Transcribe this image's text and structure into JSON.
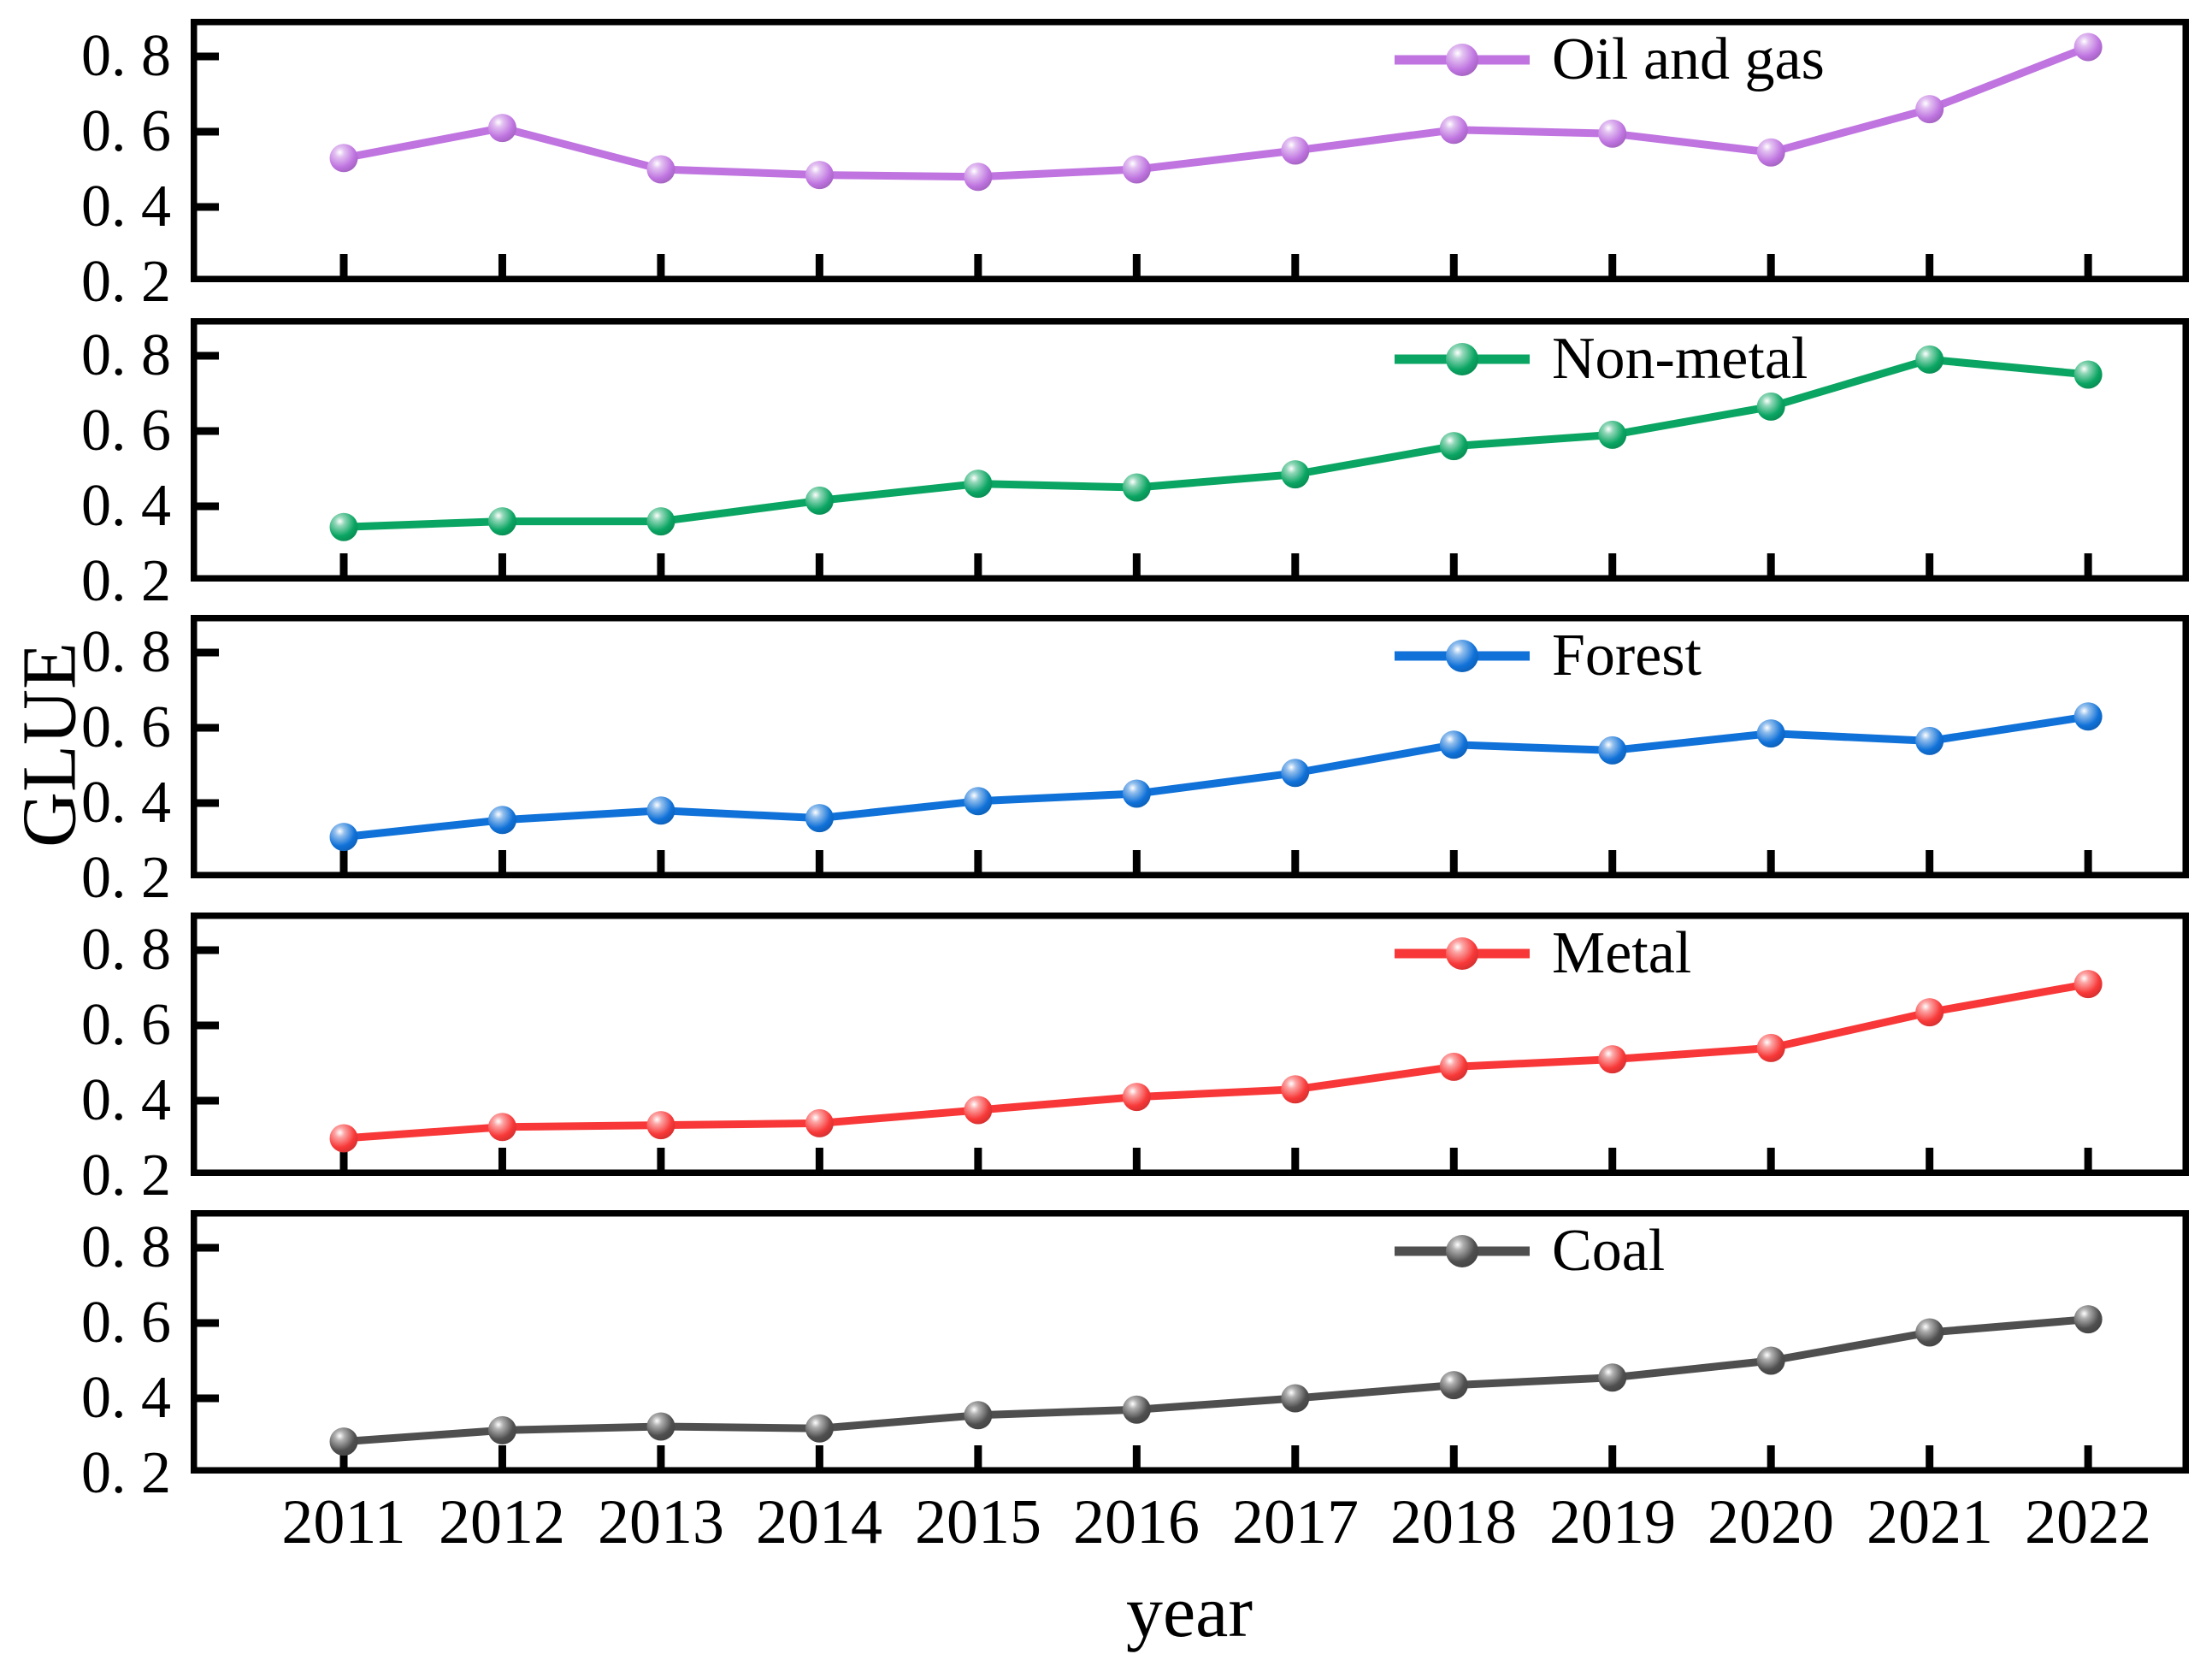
{
  "chart_data": {
    "type": "line",
    "title": "",
    "xlabel": "year",
    "ylabel": "GLUE",
    "x": [
      2011,
      2012,
      2013,
      2014,
      2015,
      2016,
      2017,
      2018,
      2019,
      2020,
      2021,
      2022
    ],
    "x_tick_labels": [
      "2011",
      "2012",
      "2013",
      "2014",
      "2015",
      "2016",
      "2017",
      "2018",
      "2019",
      "2020",
      "2021",
      "2022"
    ],
    "ylim": [
      0.2,
      0.9
    ],
    "yticks": [
      0.2,
      0.4,
      0.6,
      0.8
    ],
    "ytick_labels": [
      "0. 2",
      "0. 4",
      "0. 6",
      "0. 8"
    ],
    "grid": false,
    "layout_note": "five vertically stacked panels sharing one x axis, legend inside each panel top-center-right",
    "panels": [
      {
        "name": "Oil and gas",
        "color": "#bf74e0",
        "values": [
          0.53,
          0.61,
          0.5,
          0.485,
          0.48,
          0.5,
          0.55,
          0.605,
          0.595,
          0.545,
          0.66,
          0.825
        ]
      },
      {
        "name": "Non-metal",
        "color": "#0aa562",
        "values": [
          0.345,
          0.36,
          0.36,
          0.415,
          0.46,
          0.45,
          0.485,
          0.56,
          0.59,
          0.665,
          0.79,
          0.75
        ]
      },
      {
        "name": "Forest",
        "color": "#1071d8",
        "values": [
          0.31,
          0.355,
          0.38,
          0.36,
          0.405,
          0.425,
          0.48,
          0.555,
          0.54,
          0.585,
          0.565,
          0.63
        ]
      },
      {
        "name": "Metal",
        "color": "#f83838",
        "values": [
          0.3,
          0.33,
          0.335,
          0.34,
          0.375,
          0.41,
          0.43,
          0.49,
          0.51,
          0.54,
          0.635,
          0.71
        ]
      },
      {
        "name": "Coal",
        "color": "#4f4f4f",
        "values": [
          0.285,
          0.315,
          0.325,
          0.32,
          0.355,
          0.37,
          0.4,
          0.435,
          0.455,
          0.5,
          0.575,
          0.61
        ]
      }
    ],
    "axis_color": "#000000",
    "background": "#ffffff"
  }
}
